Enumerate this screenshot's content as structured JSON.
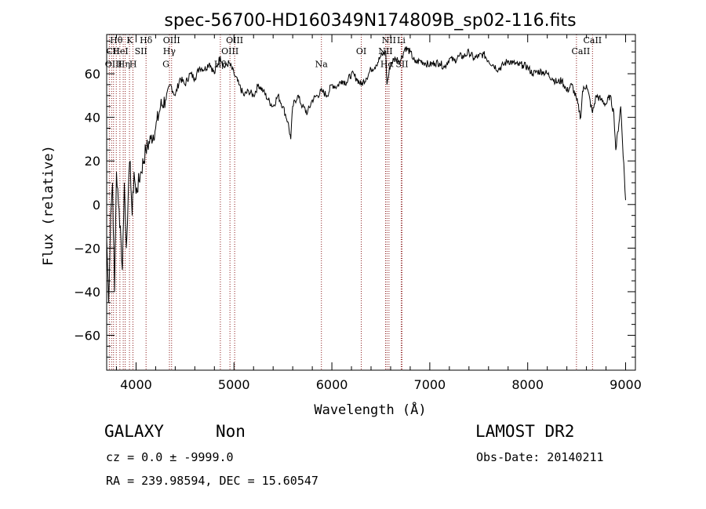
{
  "chart_data": {
    "type": "line",
    "title": "spec-56700-HD160349N174809B_sp02-116.fits",
    "xlabel": "Wavelength (Å)",
    "ylabel": "Flux (relative)",
    "xlim": [
      3700,
      9100
    ],
    "ylim": [
      -76,
      78
    ],
    "xticks": [
      4000,
      5000,
      6000,
      7000,
      8000,
      9000
    ],
    "yticks": [
      -60,
      -40,
      -20,
      0,
      20,
      40,
      60
    ],
    "grid": false,
    "series": [
      {
        "x": [
          3700,
          3720,
          3740,
          3760,
          3780,
          3800,
          3820,
          3840,
          3860,
          3880,
          3900,
          3920,
          3940,
          3960,
          3980,
          4000,
          4050,
          4100,
          4150,
          4200,
          4250,
          4300,
          4350,
          4400,
          4450,
          4500,
          4550,
          4600,
          4650,
          4700,
          4750,
          4800,
          4860,
          4900,
          4950,
          5000,
          5050,
          5100,
          5150,
          5200,
          5250,
          5300,
          5350,
          5400,
          5450,
          5500,
          5550,
          5580,
          5600,
          5650,
          5700,
          5750,
          5800,
          5850,
          5900,
          5950,
          6000,
          6050,
          6100,
          6150,
          6200,
          6250,
          6300,
          6350,
          6400,
          6450,
          6500,
          6550,
          6563,
          6600,
          6650,
          6700,
          6750,
          6800,
          6850,
          6900,
          6950,
          7000,
          7050,
          7100,
          7150,
          7200,
          7250,
          7300,
          7350,
          7400,
          7450,
          7500,
          7550,
          7600,
          7650,
          7700,
          7750,
          7800,
          7850,
          7900,
          7950,
          8000,
          8050,
          8100,
          8150,
          8200,
          8250,
          8300,
          8350,
          8400,
          8450,
          8500,
          8542,
          8560,
          8600,
          8662,
          8700,
          8750,
          8800,
          8840,
          8880,
          8900,
          8950,
          9000
        ],
        "y": [
          -15,
          -45,
          -5,
          10,
          -40,
          15,
          0,
          -10,
          -30,
          10,
          -20,
          5,
          20,
          -5,
          15,
          5,
          15,
          25,
          30,
          35,
          45,
          48,
          55,
          50,
          58,
          55,
          60,
          58,
          63,
          62,
          65,
          60,
          68,
          63,
          65,
          60,
          55,
          50,
          52,
          50,
          55,
          52,
          48,
          45,
          50,
          45,
          38,
          30,
          45,
          50,
          45,
          42,
          48,
          50,
          52,
          50,
          55,
          54,
          57,
          56,
          60,
          58,
          55,
          58,
          62,
          64,
          68,
          70,
          55,
          65,
          67,
          66,
          72,
          70,
          65,
          66,
          65,
          64,
          65,
          65,
          63,
          67,
          66,
          68,
          68,
          70,
          67,
          68,
          69,
          66,
          64,
          62,
          64,
          66,
          65,
          64,
          64,
          63,
          60,
          61,
          61,
          60,
          58,
          56,
          57,
          52,
          55,
          48,
          40,
          52,
          55,
          42,
          50,
          48,
          46,
          50,
          42,
          25,
          45,
          2
        ]
      }
    ],
    "annotations": [
      {
        "text": "Hθ",
        "x": 3798,
        "y": 74
      },
      {
        "text": "CII",
        "x": 3765,
        "y": 69
      },
      {
        "text": "OIII",
        "x": 3770,
        "y": 63
      },
      {
        "text": "HeI",
        "x": 3840,
        "y": 69
      },
      {
        "text": "Hη",
        "x": 3875,
        "y": 63
      },
      {
        "text": "K",
        "x": 3935,
        "y": 74
      },
      {
        "text": "H",
        "x": 3970,
        "y": 63
      },
      {
        "text": "SII",
        "x": 4050,
        "y": 69
      },
      {
        "text": "Hδ",
        "x": 4102,
        "y": 74
      },
      {
        "text": "OIII",
        "x": 4363,
        "y": 74
      },
      {
        "text": "Hγ",
        "x": 4340,
        "y": 69
      },
      {
        "text": "G",
        "x": 4305,
        "y": 63
      },
      {
        "text": "Hβ",
        "x": 4861,
        "y": 63
      },
      {
        "text": "OIII",
        "x": 5007,
        "y": 74
      },
      {
        "text": "OIII",
        "x": 4959,
        "y": 69
      },
      {
        "text": "Na",
        "x": 5893,
        "y": 63
      },
      {
        "text": "OI",
        "x": 6300,
        "y": 69
      },
      {
        "text": "NII",
        "x": 6583,
        "y": 74
      },
      {
        "text": "NII",
        "x": 6548,
        "y": 69
      },
      {
        "text": "Hα",
        "x": 6563,
        "y": 63
      },
      {
        "text": "Li",
        "x": 6708,
        "y": 74
      },
      {
        "text": "SII",
        "x": 6716,
        "y": 63
      },
      {
        "text": "CaII",
        "x": 8662,
        "y": 74
      },
      {
        "text": "CaII",
        "x": 8542,
        "y": 69
      }
    ],
    "line_markers": [
      3727,
      3750,
      3770,
      3798,
      3835,
      3869,
      3889,
      3933,
      3968,
      4102,
      4341,
      4363,
      4861,
      4959,
      5007,
      5893,
      6300,
      6548,
      6563,
      6583,
      6708,
      6716,
      8498,
      8662
    ]
  },
  "info": {
    "object_class": "GALAXY",
    "subclass": "Non",
    "survey": "LAMOST DR2",
    "redshift": "cz = 0.0 ± -9999.0",
    "obs_date": "Obs-Date: 20140211",
    "coords": "RA = 239.98594, DEC =  15.60547"
  },
  "colors": {
    "spectrum": "#000000",
    "line_markers": "#8b1a1a",
    "axes": "#000000",
    "background": "#ffffff"
  }
}
